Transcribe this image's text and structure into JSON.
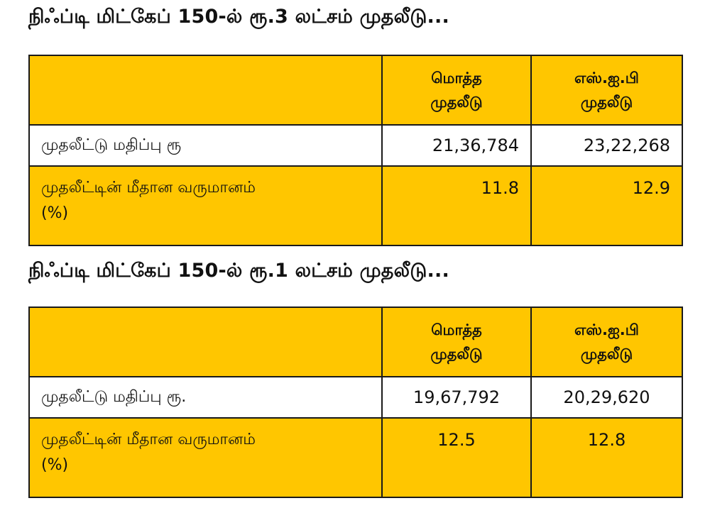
{
  "tables": [
    {
      "heading": "நிஃப்டி மிட்கேப் 150-ல் ரூ.3 லட்சம் முதலீடு...",
      "col1_line1": "மொத்த",
      "col1_line2": "முதலீடு",
      "col2_line1": "எஸ்.ஐ.பி",
      "col2_line2": "முதலீடு",
      "row1_label": "முதலீட்டு மதிப்பு ரூ",
      "row1_col1": "21,36,784",
      "row1_col2": "23,22,268",
      "row2_label_line1": "முதலீட்டின் மீதான வருமானம்",
      "row2_label_line2": "(%)",
      "row2_col1": "11.8",
      "row2_col2": "12.9"
    },
    {
      "heading": "நிஃப்டி மிட்கேப் 150-ல் ரூ.1 லட்சம் முதலீடு...",
      "col1_line1": "மொத்த",
      "col1_line2": "முதலீடு",
      "col2_line1": "எஸ்.ஐ.பி",
      "col2_line2": "முதலீடு",
      "row1_label": "முதலீட்டு மதிப்பு ரூ.",
      "row1_col1": "19,67,792",
      "row1_col2": "20,29,620",
      "row2_label_line1": "முதலீட்டின் மீதான வருமானம்",
      "row2_label_line2": "(%)",
      "row2_col1": "12.5",
      "row2_col2": "12.8"
    }
  ],
  "colors": {
    "header_fill": "#ffc600",
    "border": "#1a1a1a"
  }
}
